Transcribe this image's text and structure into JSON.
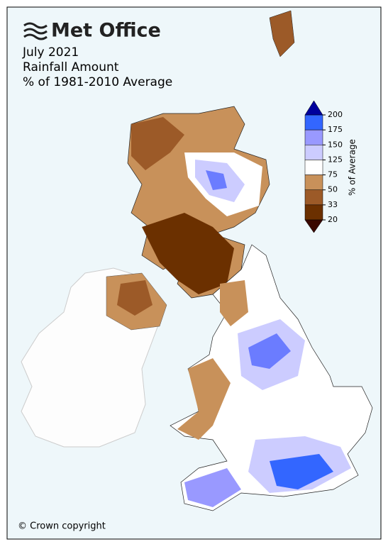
{
  "header": {
    "logo": "Met Office",
    "title_lines": [
      "July 2021",
      "Rainfall Amount",
      "% of 1981-2010 Average"
    ]
  },
  "legend": {
    "label": "% of Average",
    "ticks": [
      200,
      175,
      150,
      125,
      75,
      50,
      33,
      20
    ],
    "segment_colors": [
      "#3366ff",
      "#9999ff",
      "#ccccff",
      "#ffffff",
      "#c8915a",
      "#9c5a28",
      "#6b3000"
    ],
    "over_color": "#00009c",
    "under_color": "#3a0800"
  },
  "footer": {
    "copyright": "© Crown copyright"
  }
}
